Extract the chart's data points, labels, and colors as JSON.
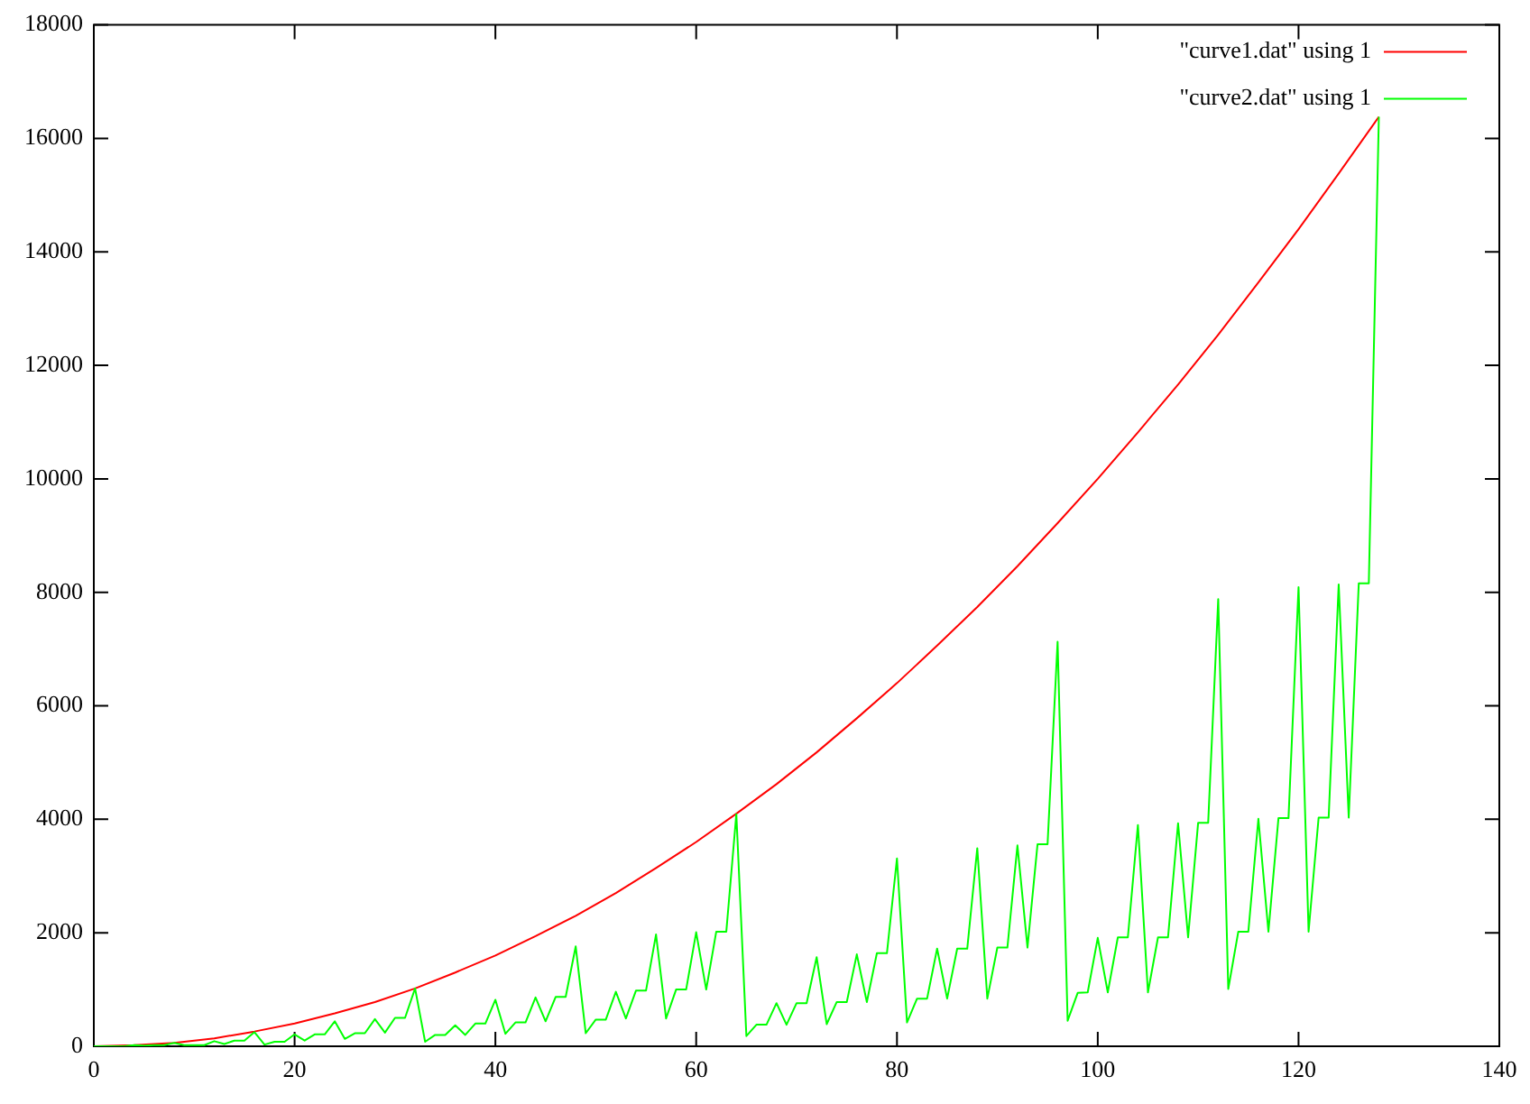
{
  "chart_data": {
    "type": "line",
    "xlim": [
      0,
      140
    ],
    "xticks": [
      0,
      20,
      40,
      60,
      80,
      100,
      120,
      140
    ],
    "ylim": [
      0,
      18000
    ],
    "yticks": [
      0,
      2000,
      4000,
      6000,
      8000,
      10000,
      12000,
      14000,
      16000,
      18000
    ],
    "legend": "top right",
    "series": [
      {
        "name": "\"curve1.dat\" using 1",
        "color": "#ff0000",
        "x": [
          0,
          4,
          8,
          12,
          16,
          20,
          24,
          28,
          32,
          36,
          40,
          44,
          48,
          52,
          56,
          60,
          64,
          68,
          72,
          76,
          80,
          84,
          88,
          92,
          96,
          100,
          104,
          108,
          112,
          116,
          120,
          124,
          128
        ],
        "values": [
          0,
          20,
          60,
          140,
          260,
          400,
          580,
          780,
          1020,
          1300,
          1600,
          1940,
          2300,
          2700,
          3140,
          3600,
          4100,
          4620,
          5180,
          5780,
          6400,
          7060,
          7740,
          8460,
          9220,
          10000,
          10820,
          11660,
          12540,
          13460,
          14400,
          15380,
          16380
        ]
      },
      {
        "name": "\"curve2.dat\" using 1",
        "color": "#00ff00",
        "x": [
          0,
          1,
          2,
          3,
          4,
          5,
          6,
          7,
          8,
          9,
          10,
          11,
          12,
          13,
          14,
          15,
          16,
          17,
          18,
          19,
          20,
          21,
          22,
          23,
          24,
          25,
          26,
          27,
          28,
          29,
          30,
          31,
          32,
          33,
          34,
          35,
          36,
          37,
          38,
          39,
          40,
          41,
          42,
          43,
          44,
          45,
          46,
          47,
          48,
          49,
          50,
          51,
          52,
          53,
          54,
          55,
          56,
          57,
          58,
          59,
          60,
          61,
          62,
          63,
          64,
          65,
          66,
          67,
          68,
          69,
          70,
          71,
          72,
          73,
          74,
          75,
          76,
          77,
          78,
          79,
          80,
          81,
          82,
          83,
          84,
          85,
          86,
          87,
          88,
          89,
          90,
          91,
          92,
          93,
          94,
          95,
          96,
          97,
          98,
          99,
          100,
          101,
          102,
          103,
          104,
          105,
          106,
          107,
          108,
          109,
          110,
          111,
          112,
          113,
          114,
          115,
          116,
          117,
          118,
          119,
          120,
          121,
          122,
          123,
          124,
          125,
          126,
          127,
          128
        ],
        "values": [
          0,
          0,
          0,
          0,
          20,
          10,
          20,
          20,
          60,
          20,
          20,
          20,
          90,
          40,
          100,
          100,
          250,
          30,
          80,
          80,
          210,
          100,
          210,
          210,
          440,
          130,
          230,
          230,
          480,
          240,
          500,
          500,
          1020,
          80,
          200,
          200,
          370,
          200,
          400,
          400,
          820,
          220,
          420,
          420,
          860,
          440,
          870,
          870,
          1760,
          230,
          470,
          470,
          960,
          490,
          980,
          980,
          1970,
          490,
          1000,
          1000,
          2010,
          1000,
          2020,
          2020,
          4090,
          180,
          380,
          380,
          760,
          380,
          760,
          760,
          1570,
          390,
          780,
          780,
          1620,
          780,
          1640,
          1640,
          3310,
          420,
          840,
          840,
          1720,
          840,
          1720,
          1720,
          3490,
          840,
          1740,
          1740,
          3540,
          1740,
          3560,
          3560,
          7130,
          450,
          940,
          950,
          1910,
          950,
          1920,
          1920,
          3900,
          950,
          1920,
          1920,
          3930,
          1920,
          3940,
          3940,
          7880,
          1010,
          2020,
          2020,
          4010,
          2020,
          4020,
          4020,
          8090,
          2020,
          4030,
          4030,
          8140,
          4030,
          8160,
          8160,
          16380
        ]
      }
    ]
  }
}
